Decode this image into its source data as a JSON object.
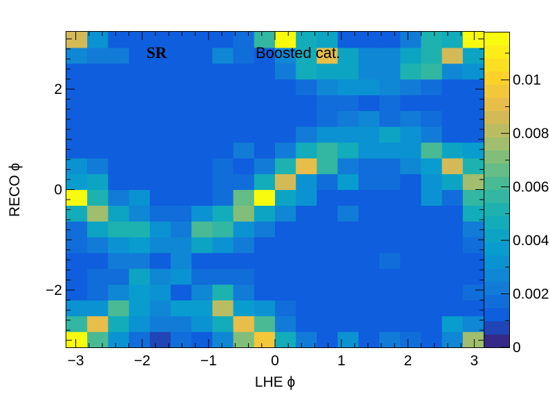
{
  "chart_data": {
    "type": "heatmap",
    "title": "",
    "xlabel": "LHE ϕ",
    "ylabel": "RECO ϕ",
    "xlim": [
      -3.1416,
      3.1416
    ],
    "ylim": [
      -3.1416,
      3.1416
    ],
    "nx": 20,
    "ny": 20,
    "x_ticks": [
      -3,
      -2,
      -1,
      0,
      1,
      2,
      3
    ],
    "x_tick_labels": [
      "−3",
      "−2",
      "−1",
      "0",
      "1",
      "2",
      "3"
    ],
    "y_ticks": [
      -2,
      0,
      2
    ],
    "y_tick_labels": [
      "−2",
      "0",
      "2"
    ],
    "z_range": [
      0,
      0.0118
    ],
    "z_ticks": [
      0,
      0.002,
      0.004,
      0.006,
      0.008,
      0.01
    ],
    "z_tick_labels": [
      "0",
      "0.002",
      "0.004",
      "0.006",
      "0.008",
      "0.01"
    ],
    "palette": "parula",
    "annotations": [
      "SR",
      "Boosted cat."
    ],
    "z_values": [
      [
        0.0115,
        0.006,
        0.003,
        0.0018,
        0.0008,
        0.0015,
        0.001,
        0.0025,
        0.007,
        0.0095,
        0.0048,
        0.002,
        0.0012,
        0.003,
        0.0012,
        0.002,
        0.0015,
        0.001,
        0.0025,
        0.0078
      ],
      [
        0.0058,
        0.009,
        0.0045,
        0.0032,
        0.002,
        0.002,
        0.0032,
        0.0045,
        0.009,
        0.006,
        0.002,
        0.0012,
        0.001,
        0.001,
        0.001,
        0.001,
        0.001,
        0.001,
        0.0038,
        0.0025
      ],
      [
        0.003,
        0.003,
        0.006,
        0.0035,
        0.0025,
        0.0035,
        0.0035,
        0.008,
        0.0035,
        0.003,
        0.0015,
        0.001,
        0.001,
        0.001,
        0.001,
        0.001,
        0.001,
        0.001,
        0.001,
        0.001
      ],
      [
        0.001,
        0.0015,
        0.0025,
        0.0035,
        0.003,
        0.001,
        0.0025,
        0.005,
        0.002,
        0.001,
        0.001,
        0.001,
        0.001,
        0.001,
        0.001,
        0.001,
        0.001,
        0.001,
        0.001,
        0.0018
      ],
      [
        0.001,
        0.0018,
        0.0015,
        0.004,
        0.0028,
        0.003,
        0.0018,
        0.0015,
        0.0015,
        0.001,
        0.001,
        0.001,
        0.001,
        0.001,
        0.001,
        0.001,
        0.001,
        0.001,
        0.001,
        0.001
      ],
      [
        0.001,
        0.001,
        0.002,
        0.002,
        0.001,
        0.0025,
        0.001,
        0.001,
        0.001,
        0.001,
        0.001,
        0.001,
        0.001,
        0.001,
        0.001,
        0.0015,
        0.001,
        0.001,
        0.001,
        0.001
      ],
      [
        0.0015,
        0.002,
        0.003,
        0.0035,
        0.0025,
        0.0025,
        0.004,
        0.003,
        0.002,
        0.0012,
        0.001,
        0.001,
        0.001,
        0.001,
        0.001,
        0.001,
        0.001,
        0.001,
        0.001,
        0.0015
      ],
      [
        0.0015,
        0.004,
        0.005,
        0.005,
        0.003,
        0.002,
        0.006,
        0.0055,
        0.003,
        0.002,
        0.001,
        0.001,
        0.001,
        0.001,
        0.001,
        0.001,
        0.001,
        0.001,
        0.001,
        0.002
      ],
      [
        0.0045,
        0.0075,
        0.004,
        0.0025,
        0.0018,
        0.0018,
        0.003,
        0.0045,
        0.007,
        0.004,
        0.0028,
        0.001,
        0.001,
        0.002,
        0.001,
        0.001,
        0.001,
        0.001,
        0.001,
        0.0045
      ],
      [
        0.0115,
        0.005,
        0.002,
        0.003,
        0.001,
        0.001,
        0.001,
        0.0018,
        0.0065,
        0.0118,
        0.004,
        0.003,
        0.001,
        0.001,
        0.001,
        0.001,
        0.001,
        0.003,
        0.0015,
        0.0055
      ],
      [
        0.0038,
        0.004,
        0.001,
        0.001,
        0.001,
        0.001,
        0.001,
        0.0015,
        0.0018,
        0.0048,
        0.0085,
        0.003,
        0.0015,
        0.0035,
        0.0015,
        0.0015,
        0.001,
        0.003,
        0.004,
        0.0078
      ],
      [
        0.003,
        0.002,
        0.001,
        0.001,
        0.001,
        0.001,
        0.001,
        0.0015,
        0.001,
        0.002,
        0.005,
        0.009,
        0.0058,
        0.002,
        0.0015,
        0.0015,
        0.0025,
        0.0035,
        0.0085,
        0.005
      ],
      [
        0.001,
        0.001,
        0.001,
        0.001,
        0.001,
        0.001,
        0.001,
        0.001,
        0.002,
        0.001,
        0.002,
        0.0048,
        0.0058,
        0.0045,
        0.003,
        0.003,
        0.003,
        0.006,
        0.004,
        0.0035
      ],
      [
        0.001,
        0.001,
        0.001,
        0.001,
        0.001,
        0.001,
        0.001,
        0.001,
        0.001,
        0.001,
        0.001,
        0.002,
        0.003,
        0.003,
        0.003,
        0.004,
        0.003,
        0.002,
        0.001,
        0.001
      ],
      [
        0.001,
        0.001,
        0.001,
        0.001,
        0.001,
        0.001,
        0.001,
        0.001,
        0.001,
        0.001,
        0.001,
        0.001,
        0.0018,
        0.002,
        0.0025,
        0.0018,
        0.002,
        0.0015,
        0.001,
        0.001
      ],
      [
        0.001,
        0.001,
        0.001,
        0.001,
        0.001,
        0.001,
        0.001,
        0.001,
        0.001,
        0.001,
        0.001,
        0.001,
        0.0015,
        0.0015,
        0.001,
        0.0015,
        0.0012,
        0.001,
        0.001,
        0.001
      ],
      [
        0.001,
        0.001,
        0.001,
        0.001,
        0.001,
        0.001,
        0.001,
        0.001,
        0.001,
        0.001,
        0.001,
        0.0018,
        0.0025,
        0.003,
        0.003,
        0.0025,
        0.0022,
        0.0018,
        0.001,
        0.001
      ],
      [
        0.001,
        0.001,
        0.001,
        0.001,
        0.001,
        0.001,
        0.001,
        0.001,
        0.001,
        0.001,
        0.002,
        0.0045,
        0.004,
        0.004,
        0.0025,
        0.0025,
        0.005,
        0.0055,
        0.0025,
        0.003
      ],
      [
        0.0025,
        0.002,
        0.002,
        0.001,
        0.001,
        0.001,
        0.001,
        0.0028,
        0.0015,
        0.001,
        0.0025,
        0.0048,
        0.009,
        0.004,
        0.0025,
        0.0025,
        0.004,
        0.005,
        0.0085,
        0.004
      ],
      [
        0.0085,
        0.003,
        0.001,
        0.001,
        0.001,
        0.001,
        0.001,
        0.001,
        0.0018,
        0.0055,
        0.0115,
        0.0048,
        0.004,
        0.0012,
        0.0012,
        0.0012,
        0.002,
        0.005,
        0.0045,
        0.0118
      ]
    ]
  }
}
